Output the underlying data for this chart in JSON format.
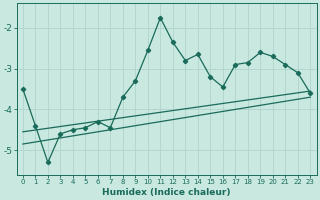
{
  "title": "",
  "xlabel": "Humidex (Indice chaleur)",
  "bg_color": "#c8e8e0",
  "line_color": "#1a6b5a",
  "grid_color": "#b0d4cc",
  "xlim": [
    -0.5,
    23.5
  ],
  "ylim": [
    -5.6,
    -1.4
  ],
  "yticks": [
    -5,
    -4,
    -3,
    -2
  ],
  "xticks": [
    0,
    1,
    2,
    3,
    4,
    5,
    6,
    7,
    8,
    9,
    10,
    11,
    12,
    13,
    14,
    15,
    16,
    17,
    18,
    19,
    20,
    21,
    22,
    23
  ],
  "scatter_x": [
    0,
    1,
    2,
    3,
    4,
    5,
    6,
    7,
    8,
    9,
    10,
    11,
    12,
    13,
    14,
    15,
    16,
    17,
    18,
    19,
    20,
    21,
    22,
    23
  ],
  "scatter_y": [
    -3.5,
    -4.4,
    -5.3,
    -4.6,
    -4.5,
    -4.45,
    -4.3,
    -4.45,
    -3.7,
    -3.3,
    -2.55,
    -1.75,
    -2.35,
    -2.8,
    -2.65,
    -3.2,
    -3.45,
    -2.9,
    -2.85,
    -2.6,
    -2.7,
    -2.9,
    -3.1,
    -3.6
  ],
  "trend1_x": [
    0,
    23
  ],
  "trend1_y": [
    -4.55,
    -3.55
  ],
  "trend2_x": [
    0,
    23
  ],
  "trend2_y": [
    -4.85,
    -3.7
  ]
}
